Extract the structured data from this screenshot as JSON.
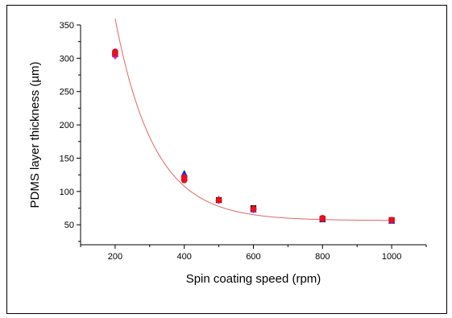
{
  "chart_data": {
    "type": "scatter",
    "xlabel": "Spin coating speed (rpm)",
    "ylabel": "PDMS layer thickness (µm)",
    "xlim": [
      100,
      1100
    ],
    "ylim": [
      20,
      350
    ],
    "x_ticks": [
      200,
      400,
      600,
      800,
      1000
    ],
    "y_ticks": [
      50,
      100,
      150,
      200,
      250,
      300,
      350
    ],
    "grid": false,
    "legend": "none",
    "series": [
      {
        "marker": "square",
        "color": "#000000",
        "x": [
          200,
          400,
          500,
          600,
          800,
          1000
        ],
        "y": [
          306,
          120,
          87,
          75,
          59,
          57
        ]
      },
      {
        "marker": "circle",
        "color": "#e8101a",
        "x": [
          200,
          400,
          500,
          600,
          800,
          1000
        ],
        "y": [
          310,
          117,
          87,
          73,
          60,
          57
        ]
      },
      {
        "marker": "triangle",
        "color": "#1b1bd9",
        "x": [
          200,
          400,
          500,
          600,
          800,
          1000
        ],
        "y": [
          308,
          127,
          88,
          73,
          58,
          56
        ]
      },
      {
        "marker": "diamond",
        "color": "#e01ad6",
        "x": [
          200,
          400,
          500,
          600,
          800,
          1000
        ],
        "y": [
          303,
          122,
          86,
          72,
          59,
          56
        ]
      },
      {
        "marker": "circle",
        "color": "#e8101a",
        "x": [
          200,
          400,
          500,
          600,
          800,
          1000
        ],
        "y": [
          307,
          121,
          87,
          74,
          59,
          57
        ]
      }
    ],
    "fit_curve": {
      "type": "exponential decay",
      "color": "#e06666",
      "y0": 56.3,
      "A": 1780,
      "t": 113,
      "x_range": [
        200,
        1000
      ]
    }
  }
}
